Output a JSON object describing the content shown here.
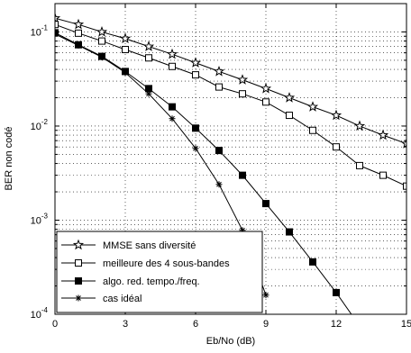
{
  "chart_data": {
    "type": "line",
    "title": "",
    "xlabel": "Eb/No (dB)",
    "ylabel": "BER non codé",
    "xlim": [
      0,
      15
    ],
    "ylim": [
      0.0001,
      0.2
    ],
    "yscale": "log",
    "grid": true,
    "legend_position": "bottom-left",
    "x_ticks": [
      0,
      3,
      6,
      9,
      12,
      15
    ],
    "x_tick_labels": [
      "0",
      "3",
      "6",
      "9",
      "12",
      "15"
    ],
    "y_ticks": [
      0.0001,
      0.001,
      0.01,
      0.1
    ],
    "y_tick_labels": [
      {
        "base": "10",
        "exp": "-4"
      },
      {
        "base": "10",
        "exp": "-3"
      },
      {
        "base": "10",
        "exp": "-2"
      },
      {
        "base": "10",
        "exp": "-1"
      }
    ],
    "series": [
      {
        "name": "MMSE sans diversité",
        "marker": "star",
        "x": [
          0,
          1,
          2,
          3,
          4,
          5,
          6,
          7,
          8,
          9,
          10,
          11,
          12,
          13,
          14,
          15
        ],
        "y": [
          0.14,
          0.12,
          0.1,
          0.085,
          0.07,
          0.058,
          0.047,
          0.038,
          0.031,
          0.025,
          0.02,
          0.016,
          0.013,
          0.01,
          0.008,
          0.0065
        ]
      },
      {
        "name": "meilleure des 4 sous-bandes",
        "marker": "square-open",
        "x": [
          0,
          1,
          2,
          3,
          4,
          5,
          6,
          7,
          8,
          9,
          10,
          11,
          12,
          13,
          14,
          15
        ],
        "y": [
          0.12,
          0.097,
          0.08,
          0.065,
          0.053,
          0.043,
          0.035,
          0.026,
          0.022,
          0.018,
          0.013,
          0.009,
          0.006,
          0.0038,
          0.003,
          0.0023
        ]
      },
      {
        "name": "algo. red. tempo./freq.",
        "marker": "square-filled",
        "x": [
          0,
          1,
          2,
          3,
          4,
          5,
          6,
          7,
          8,
          9,
          10,
          11,
          12,
          13
        ],
        "y": [
          0.098,
          0.073,
          0.055,
          0.038,
          0.025,
          0.016,
          0.0095,
          0.0055,
          0.003,
          0.0015,
          0.00075,
          0.00036,
          0.00017,
          7.5e-05
        ]
      },
      {
        "name": "cas idéal",
        "marker": "asterisk",
        "x": [
          0,
          1,
          2,
          3,
          4,
          5,
          6,
          7,
          8,
          9
        ],
        "y": [
          0.095,
          0.072,
          0.054,
          0.037,
          0.022,
          0.012,
          0.0058,
          0.0024,
          0.00078,
          0.00016
        ]
      }
    ]
  }
}
